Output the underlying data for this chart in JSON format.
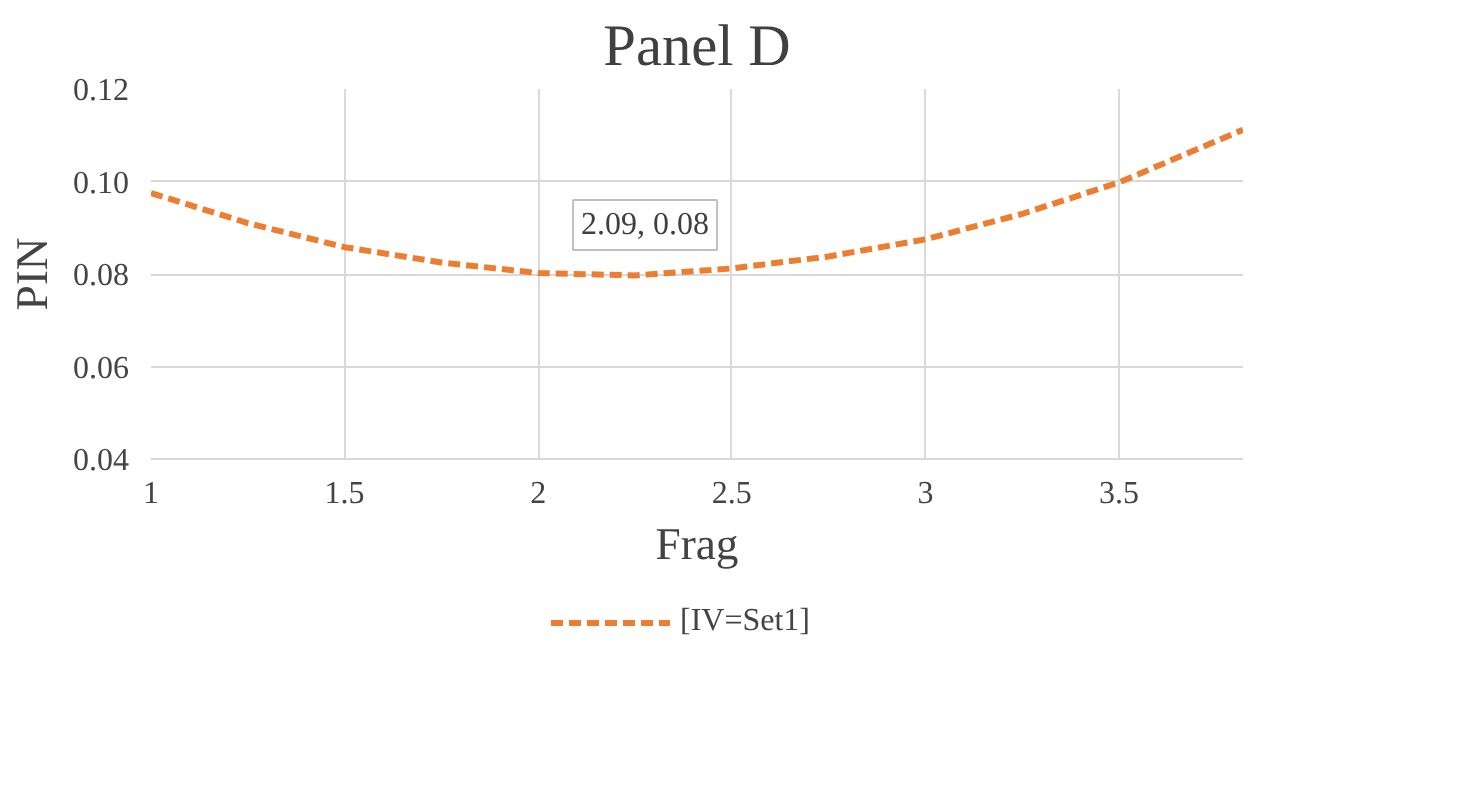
{
  "chart_data": {
    "type": "line",
    "title": "Panel D",
    "xlabel": "Frag",
    "ylabel": "PIN",
    "x": [
      1,
      1.25,
      1.5,
      1.75,
      2,
      2.25,
      2.5,
      2.75,
      3,
      3.25,
      3.5,
      3.82
    ],
    "series": [
      {
        "name": "[IV=Set1]",
        "color": "#ed7d31",
        "values": [
          0.0975,
          0.091,
          0.0858,
          0.0825,
          0.0802,
          0.0797,
          0.0812,
          0.0838,
          0.0875,
          0.093,
          0.0998,
          0.1112
        ]
      }
    ],
    "xlim": [
      1,
      3.82
    ],
    "xticks": [
      1,
      1.5,
      2,
      2.5,
      3,
      3.5
    ],
    "ylim": [
      0.04,
      0.12
    ],
    "yticks": [
      {
        "value": 0.04,
        "label": "0.04"
      },
      {
        "value": 0.06,
        "label": "0.06"
      },
      {
        "value": 0.08,
        "label": "0.08"
      },
      {
        "value": 0.1,
        "label": "0.10"
      },
      {
        "value": 0.12,
        "label": "0.12"
      }
    ],
    "annotations": [
      {
        "text": "2.09, 0.08",
        "x": 2.09,
        "y": 0.08
      }
    ],
    "grid": true,
    "legend": "bottom",
    "line_style": "dashed",
    "marker": "none"
  }
}
